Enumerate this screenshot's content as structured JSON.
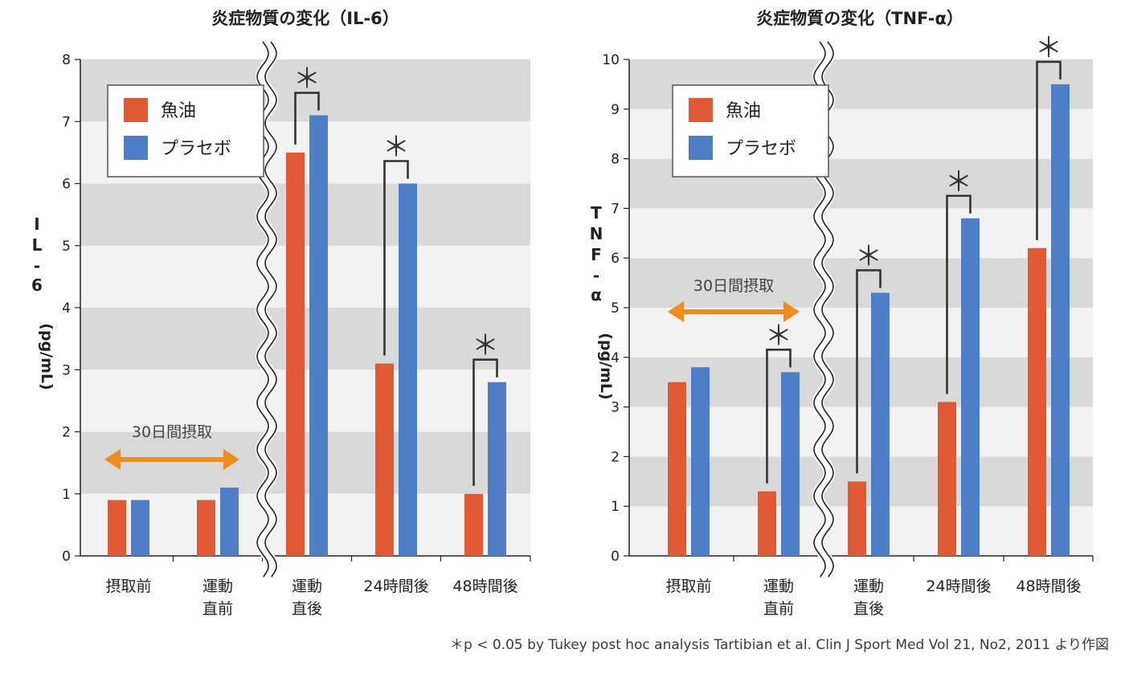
{
  "colors": {
    "fish_oil": "#e05a35",
    "placebo": "#4f7ec6",
    "arrow": "#f08c1e",
    "band_dark": "#d9d9d9",
    "band_light": "#f2f2f2",
    "text": "#222222"
  },
  "footnote": "＊p < 0.05  by Tukey post hoc analysis    Tartibian et al. Clin J Sport Med Vol 21, No2, 2011 より作図",
  "chart_data": [
    {
      "type": "bar",
      "title": "炎症物質の変化（IL-6）",
      "ylabel": "IL-6 (pg/mL)",
      "ylim": [
        0,
        8
      ],
      "yticks": [
        0,
        1,
        2,
        3,
        4,
        5,
        6,
        7,
        8
      ],
      "categories": [
        "摂取前",
        "運動\n直前",
        "運動\n直後",
        "24時間後",
        "48時間後"
      ],
      "series": [
        {
          "name": "魚油",
          "values": [
            0.9,
            0.9,
            6.5,
            3.1,
            1.0
          ]
        },
        {
          "name": "プラセボ",
          "values": [
            0.9,
            1.1,
            7.1,
            6.0,
            2.8
          ]
        }
      ],
      "significant": [
        false,
        false,
        true,
        true,
        true
      ],
      "significance_mark": "＊",
      "legend": {
        "labels": [
          "魚油",
          "プラセボ"
        ],
        "position": "top-left"
      },
      "intake_label": "30日間摂取",
      "axis_break_after_index": 1,
      "grid": "alternating bands"
    },
    {
      "type": "bar",
      "title": "炎症物質の変化（TNF-α）",
      "ylabel": "TNF-α (pg/mL)",
      "ylim": [
        0,
        10
      ],
      "yticks": [
        0,
        1,
        2,
        3,
        4,
        5,
        6,
        7,
        8,
        9,
        10
      ],
      "categories": [
        "摂取前",
        "運動\n直前",
        "運動\n直後",
        "24時間後",
        "48時間後"
      ],
      "series": [
        {
          "name": "魚油",
          "values": [
            3.5,
            1.3,
            1.5,
            3.1,
            6.2
          ]
        },
        {
          "name": "プラセボ",
          "values": [
            3.8,
            3.7,
            5.3,
            6.8,
            9.5
          ]
        }
      ],
      "significant": [
        false,
        true,
        true,
        true,
        true
      ],
      "significance_mark": "＊",
      "legend": {
        "labels": [
          "魚油",
          "プラセボ"
        ],
        "position": "top-left"
      },
      "intake_label": "30日間摂取",
      "axis_break_after_index": 1,
      "grid": "alternating bands"
    }
  ]
}
